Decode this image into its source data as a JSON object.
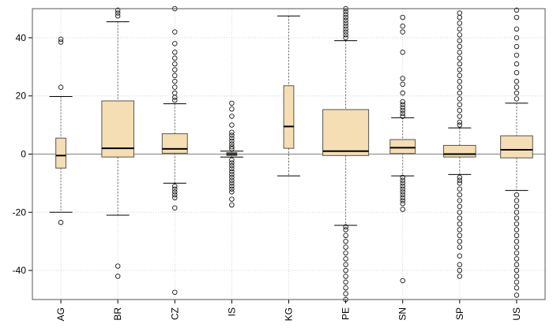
{
  "chart_data": {
    "type": "boxplot",
    "title": "",
    "xlabel": "",
    "ylabel": "",
    "ylim": [
      -50,
      50
    ],
    "y_ticks": [
      -40,
      -20,
      0,
      20,
      40
    ],
    "y_tick_labels": [
      "-40",
      "-20",
      "0",
      "20",
      "40"
    ],
    "grid": true,
    "reference_line": 0,
    "box_color": "#f5deb3",
    "categories": [
      "AG",
      "BR",
      "CZ",
      "IS",
      "KG",
      "PE",
      "SN",
      "SP",
      "US"
    ],
    "boxes": [
      {
        "label": "AG",
        "whisker_low": -20,
        "q1": -4.8,
        "median": -0.5,
        "q3": 5.5,
        "whisker_high": 19.8,
        "outliers": [
          39.5,
          38.5,
          23,
          -23.5
        ]
      },
      {
        "label": "BR",
        "whisker_low": -21,
        "q1": -1,
        "median": 2,
        "q3": 18.3,
        "whisker_high": 45.5,
        "outliers": [
          49.5,
          48.5,
          47.5,
          -38.5,
          -42
        ]
      },
      {
        "label": "CZ",
        "whisker_low": -10,
        "q1": 0.3,
        "median": 1.8,
        "q3": 7,
        "whisker_high": 17.3,
        "outliers": [
          50,
          42,
          38,
          35,
          33,
          31,
          29,
          27,
          25,
          23,
          21,
          19.5,
          18.5,
          -11,
          -12,
          -13,
          -14,
          -15,
          -18.5,
          -47.5
        ]
      },
      {
        "label": "IS",
        "whisker_low": -1,
        "q1": -0.5,
        "median": 0,
        "q3": 0.5,
        "whisker_high": 1,
        "outliers": [
          17.5,
          15.5,
          13,
          10,
          7.5,
          6.5,
          5.5,
          4.5,
          3.5,
          2.5,
          1.8,
          -2,
          -3,
          -4,
          -5,
          -6,
          -7,
          -8,
          -9,
          -10,
          -11,
          -12,
          -13,
          -15.5,
          -17.5
        ]
      },
      {
        "label": "KG",
        "whisker_low": -7.5,
        "q1": 2,
        "median": 9.5,
        "q3": 23.5,
        "whisker_high": 47.5,
        "outliers": []
      },
      {
        "label": "PE",
        "whisker_low": -24.5,
        "q1": -0.5,
        "median": 1,
        "q3": 15.3,
        "whisker_high": 39,
        "outliers": [
          50,
          49,
          48,
          47,
          46,
          45,
          44,
          43,
          42,
          41,
          40,
          -25,
          -26,
          -28,
          -30,
          -32,
          -34,
          -36,
          -38,
          -40,
          -42,
          -44,
          -46,
          -48,
          -50
        ]
      },
      {
        "label": "SN",
        "whisker_low": -7.5,
        "q1": 0.2,
        "median": 2.2,
        "q3": 5,
        "whisker_high": 12.5,
        "outliers": [
          47,
          44,
          42,
          35,
          26,
          24,
          21,
          18,
          17,
          16,
          15,
          14,
          13,
          -8,
          -9,
          -10,
          -11,
          -12,
          -13,
          -14,
          -15,
          -16,
          -17,
          -19,
          -43.5
        ]
      },
      {
        "label": "SP",
        "whisker_low": -7,
        "q1": -1,
        "median": 0,
        "q3": 3,
        "whisker_high": 9,
        "outliers": [
          48.5,
          47,
          45,
          43,
          41,
          39,
          37,
          35,
          33,
          31,
          29,
          27,
          25,
          23,
          21,
          19,
          17,
          15,
          13,
          11,
          10,
          -8,
          -9,
          -10,
          -12,
          -14,
          -16,
          -18,
          -20,
          -22,
          -24,
          -26,
          -28,
          -30,
          -32,
          -35,
          -38,
          -40,
          -42
        ]
      },
      {
        "label": "US",
        "whisker_low": -12.5,
        "q1": -1.3,
        "median": 1.5,
        "q3": 6.3,
        "whisker_high": 17.5,
        "outliers": [
          49.5,
          47,
          43,
          40,
          37,
          34,
          31,
          28,
          25,
          23,
          21,
          19,
          -14,
          -16,
          -18,
          -20,
          -22,
          -24,
          -26,
          -28,
          -30,
          -32,
          -34,
          -36,
          -38,
          -40,
          -42,
          -44,
          -46,
          -48.5
        ]
      }
    ]
  }
}
